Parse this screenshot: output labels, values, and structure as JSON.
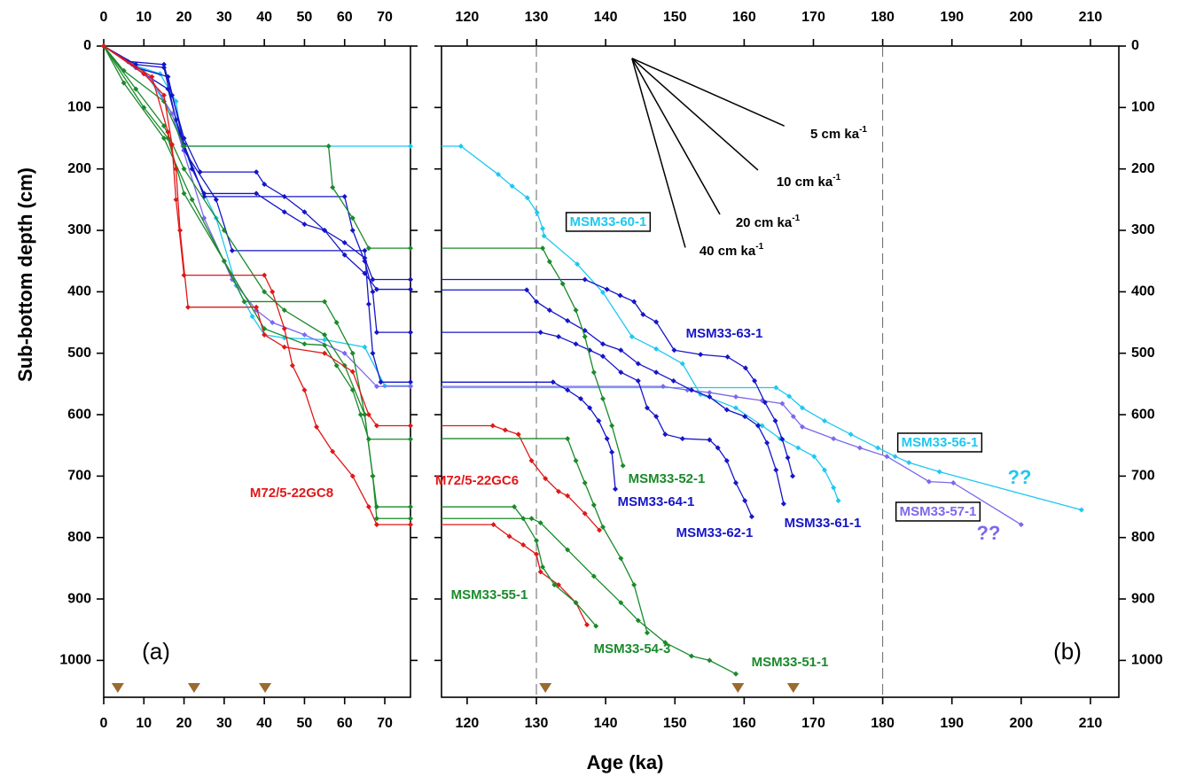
{
  "chart_data": [
    {
      "type": "line",
      "ylabel": "Sub-bottom depth (cm)",
      "panel_label": "(a)",
      "xlim": [
        0,
        76.4
      ],
      "xticks": [
        0,
        10,
        20,
        30,
        40,
        50,
        60,
        70
      ],
      "ylim": [
        0,
        1060
      ],
      "yticks": [
        0,
        100,
        200,
        300,
        400,
        500,
        600,
        700,
        800,
        900,
        1000
      ],
      "y_inverted": true,
      "marker_ages": [
        3.5,
        22.5,
        40.2
      ],
      "marker_color": "#9b6a2f",
      "series": [
        {
          "color": "#1ec8f0",
          "x": [
            0,
            7,
            14,
            18,
            19.7,
            76.4
          ],
          "values": [
            0,
            30,
            45,
            90,
            163,
            163
          ]
        },
        {
          "color": "#1ec8f0",
          "x": [
            0,
            10,
            17,
            22,
            28,
            33,
            37,
            40,
            45,
            55,
            65,
            70,
            76.4
          ],
          "values": [
            0,
            40,
            110,
            200,
            280,
            390,
            440,
            470,
            475,
            478,
            490,
            553,
            553
          ]
        },
        {
          "color": "#1515c8",
          "x": [
            0,
            6,
            15,
            17,
            20,
            24,
            38,
            40,
            45,
            50,
            55,
            60,
            65,
            67,
            76.4
          ],
          "values": [
            0,
            25,
            30,
            80,
            150,
            205,
            205,
            225,
            245,
            270,
            300,
            320,
            345,
            380,
            380
          ]
        },
        {
          "color": "#1515c8",
          "x": [
            0,
            8,
            15,
            18,
            22,
            25,
            38,
            45,
            50,
            55,
            60,
            65,
            68,
            76.4
          ],
          "values": [
            0,
            30,
            35,
            120,
            200,
            240,
            240,
            270,
            290,
            300,
            340,
            370,
            396,
            396
          ]
        },
        {
          "color": "#1515c8",
          "x": [
            0,
            8,
            16,
            20,
            25,
            60,
            62,
            65,
            67,
            68,
            76.4
          ],
          "values": [
            0,
            35,
            50,
            160,
            245,
            245,
            300,
            350,
            400,
            466,
            466
          ]
        },
        {
          "color": "#1515c8",
          "x": [
            0,
            10,
            16,
            20,
            28,
            32,
            65,
            66,
            67,
            69,
            76.4
          ],
          "values": [
            0,
            45,
            70,
            170,
            250,
            333,
            333,
            420,
            500,
            547,
            547
          ]
        },
        {
          "color": "#7b68ee",
          "x": [
            0,
            12,
            17,
            25,
            32,
            38,
            42,
            50,
            60,
            68,
            76.4
          ],
          "values": [
            0,
            55,
            110,
            280,
            380,
            430,
            450,
            470,
            500,
            554,
            554
          ]
        },
        {
          "color": "#1a8a2a",
          "x": [
            0,
            5,
            15,
            20,
            56,
            57,
            62,
            66,
            76.4
          ],
          "values": [
            0,
            40,
            90,
            163,
            163,
            230,
            280,
            329,
            329
          ]
        },
        {
          "color": "#1a8a2a",
          "x": [
            0,
            8,
            15,
            20,
            30,
            40,
            45,
            55,
            60,
            65,
            67,
            68,
            76.4
          ],
          "values": [
            0,
            70,
            130,
            200,
            300,
            400,
            430,
            470,
            520,
            600,
            700,
            750,
            750
          ]
        },
        {
          "color": "#1a8a2a",
          "x": [
            0,
            5,
            15,
            22,
            30,
            35,
            55,
            58,
            62,
            65,
            67,
            68,
            76.4
          ],
          "values": [
            0,
            60,
            150,
            250,
            350,
            416,
            416,
            450,
            500,
            600,
            700,
            769,
            769
          ]
        },
        {
          "color": "#1a8a2a",
          "x": [
            0,
            10,
            16,
            20,
            30,
            40,
            50,
            55,
            58,
            62,
            64,
            66,
            76.4
          ],
          "values": [
            0,
            100,
            150,
            240,
            350,
            460,
            485,
            487,
            520,
            560,
            600,
            640,
            640
          ]
        },
        {
          "color": "#e01818",
          "x": [
            0,
            10,
            15,
            17,
            18,
            20,
            40,
            42,
            45,
            47,
            50,
            53,
            57,
            62,
            66,
            68,
            76.4
          ],
          "values": [
            0,
            45,
            80,
            160,
            250,
            373,
            373,
            400,
            460,
            520,
            560,
            620,
            660,
            700,
            750,
            779,
            779
          ]
        },
        {
          "color": "#e01818",
          "x": [
            0,
            12,
            16,
            18,
            19,
            21,
            38,
            40,
            45,
            55,
            62,
            66,
            68,
            76.4
          ],
          "values": [
            0,
            50,
            140,
            200,
            300,
            425,
            425,
            470,
            490,
            500,
            530,
            600,
            618,
            618
          ]
        }
      ],
      "annotations": [
        {
          "text": "M72/5-22GC8",
          "color": "#e01818",
          "boxed": false
        }
      ]
    },
    {
      "type": "line",
      "xlabel": "Age (ka)",
      "panel_label": "(b)",
      "xlim": [
        116.3,
        214.1
      ],
      "xticks": [
        120,
        130,
        140,
        150,
        160,
        170,
        180,
        190,
        200,
        210
      ],
      "ylim": [
        0,
        1060
      ],
      "yticks": [
        0,
        100,
        200,
        300,
        400,
        500,
        600,
        700,
        800,
        900,
        1000
      ],
      "y_inverted": true,
      "reference_lines": [
        130,
        180
      ],
      "marker_ages": [
        131.3,
        159.1,
        167.1
      ],
      "marker_color": "#9b6a2f",
      "rate_lines": [
        {
          "rate": 5,
          "label": "5 cm ka",
          "superscript": "-1"
        },
        {
          "rate": 10,
          "label": "10 cm ka",
          "superscript": "-1"
        },
        {
          "rate": 20,
          "label": "20 cm ka",
          "superscript": "-1"
        },
        {
          "rate": 40,
          "label": "40 cm ka",
          "superscript": "-1"
        }
      ],
      "series": [
        {
          "name": "MSM33-60-1",
          "color": "#1ec8f0",
          "x": [
            119.1,
            124.5,
            126.5,
            128.7,
            130.1,
            130.9,
            131.1,
            135.9,
            139.6,
            143.8,
            147.3,
            151.1,
            153.7,
            158.8,
            162.6,
            165.2,
            167.8,
            170.1,
            171.6,
            172.9,
            173.6
          ],
          "values": [
            163,
            209,
            228,
            247,
            271,
            297,
            309,
            355,
            401,
            473,
            493,
            517,
            567,
            589,
            618,
            639,
            654,
            668,
            690,
            719,
            740
          ]
        },
        {
          "name": "MSM33-56-1",
          "color": "#1ec8f0",
          "x": [
            164.6,
            166.5,
            168.4,
            171.6,
            175.4,
            179.3,
            181.8,
            183.8,
            188.2,
            208.7
          ],
          "values": [
            556,
            570,
            589,
            610,
            632,
            654,
            668,
            678,
            693,
            755
          ]
        },
        {
          "name": "MSM33-57-1",
          "color": "#7b68ee",
          "x": [
            148.3,
            151.8,
            155,
            158.8,
            162.6,
            165.5,
            167.1,
            168.4,
            172.9,
            176.7,
            180.6,
            186.7,
            190.2,
            200
          ],
          "values": [
            554,
            560,
            564,
            571,
            577,
            582,
            603,
            620,
            639,
            654,
            668,
            709,
            711,
            779
          ]
        },
        {
          "name": "MSM33-63-1",
          "color": "#1515c8",
          "x": [
            137,
            140.2,
            142.1,
            144.1,
            145.4,
            147.3,
            149.9,
            153.7,
            157.6,
            160.2,
            161.5,
            163,
            164.5,
            165.5,
            166.3,
            167
          ],
          "values": [
            380,
            396,
            406,
            416,
            437,
            449,
            495,
            502,
            506,
            524,
            545,
            580,
            610,
            640,
            670,
            700
          ]
        },
        {
          "name": "MSM33-61-1",
          "color": "#1515c8",
          "x": [
            128.6,
            130,
            131.9,
            134.5,
            137,
            139.6,
            142.2,
            144.7,
            147.3,
            149.8,
            152.4,
            155,
            157.5,
            160.1,
            162,
            163.3,
            164.6,
            165.7
          ],
          "values": [
            397,
            416,
            430,
            447,
            463,
            485,
            495,
            517,
            531,
            545,
            560,
            571,
            592,
            603,
            618,
            646,
            690,
            745
          ]
        },
        {
          "name": "MSM33-62-1",
          "color": "#1515c8",
          "x": [
            130.6,
            133.2,
            135.7,
            137.7,
            139.6,
            142.2,
            144.7,
            146,
            147.3,
            148.6,
            151.1,
            155,
            156.2,
            157.5,
            158.8,
            160.1,
            161.1
          ],
          "values": [
            466,
            473,
            485,
            495,
            505,
            531,
            545,
            589,
            603,
            632,
            639,
            641,
            654,
            675,
            711,
            740,
            766
          ]
        },
        {
          "name": "MSM33-64-1",
          "color": "#1515c8",
          "x": [
            132.4,
            134.5,
            136.4,
            137.7,
            139,
            140.2,
            140.9,
            141.4
          ],
          "values": [
            547,
            560,
            574,
            589,
            610,
            639,
            661,
            721
          ]
        },
        {
          "name": "MSM33-52-1",
          "color": "#1a8a2a",
          "x": [
            130.9,
            131.9,
            133.8,
            135.7,
            137,
            138.3,
            139.6,
            140.9,
            142.5
          ],
          "values": [
            329,
            351,
            387,
            430,
            473,
            531,
            574,
            618,
            683
          ]
        },
        {
          "name": "M72/5-22GC6",
          "color": "#e01818",
          "x": [
            123.7,
            125.5,
            127.4,
            129.3,
            131.3,
            133.2,
            134.5,
            137,
            139.1
          ],
          "values": [
            618,
            625,
            632,
            675,
            704,
            725,
            732,
            761,
            788
          ]
        },
        {
          "color": "#e01818",
          "x": [
            123.8,
            126.1,
            128.1,
            130,
            130.6,
            133.2,
            135.7,
            137.3
          ],
          "values": [
            779,
            798,
            812,
            827,
            856,
            877,
            906,
            942
          ]
        },
        {
          "name": "MSM33-55-1",
          "color": "#1a8a2a",
          "x": [
            126.8,
            128.1,
            130,
            130.9,
            132.6,
            135.7,
            138.6
          ],
          "values": [
            750,
            769,
            805,
            848,
            877,
            906,
            944
          ]
        },
        {
          "name": "MSM33-54-3",
          "color": "#1a8a2a",
          "x": [
            134.5,
            135.7,
            137,
            138.3,
            139.6,
            142.2,
            144.1,
            146
          ],
          "values": [
            639,
            675,
            711,
            747,
            783,
            834,
            877,
            955
          ]
        },
        {
          "name": "MSM33-51-1",
          "color": "#1a8a2a",
          "x": [
            129.3,
            130.6,
            134.5,
            138.3,
            142.2,
            144.7,
            148.6,
            152.4,
            155,
            158.8
          ],
          "values": [
            769,
            776,
            820,
            863,
            906,
            935,
            971,
            993,
            1000,
            1022
          ]
        }
      ],
      "annotations": [
        {
          "text": "??",
          "color": "#1ec8f0",
          "boxed": false
        },
        {
          "text": "??",
          "color": "#7b68ee",
          "boxed": false
        }
      ]
    }
  ]
}
